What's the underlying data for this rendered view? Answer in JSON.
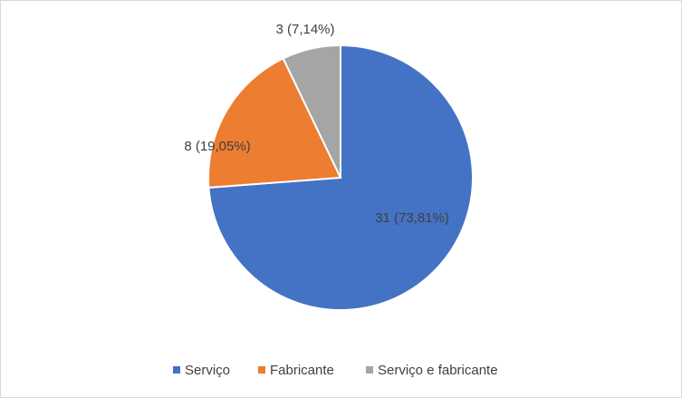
{
  "chart_data": {
    "type": "pie",
    "categories": [
      "Serviço",
      "Fabricante",
      "Serviço e fabricante"
    ],
    "values": [
      31,
      8,
      3
    ],
    "value_labels": [
      "31 (73,81%)",
      "8 (19,05%)",
      "3 (7,14%)"
    ],
    "colors": [
      "#4472c4",
      "#ed7d31",
      "#a5a5a5"
    ],
    "legend": "bottom"
  }
}
